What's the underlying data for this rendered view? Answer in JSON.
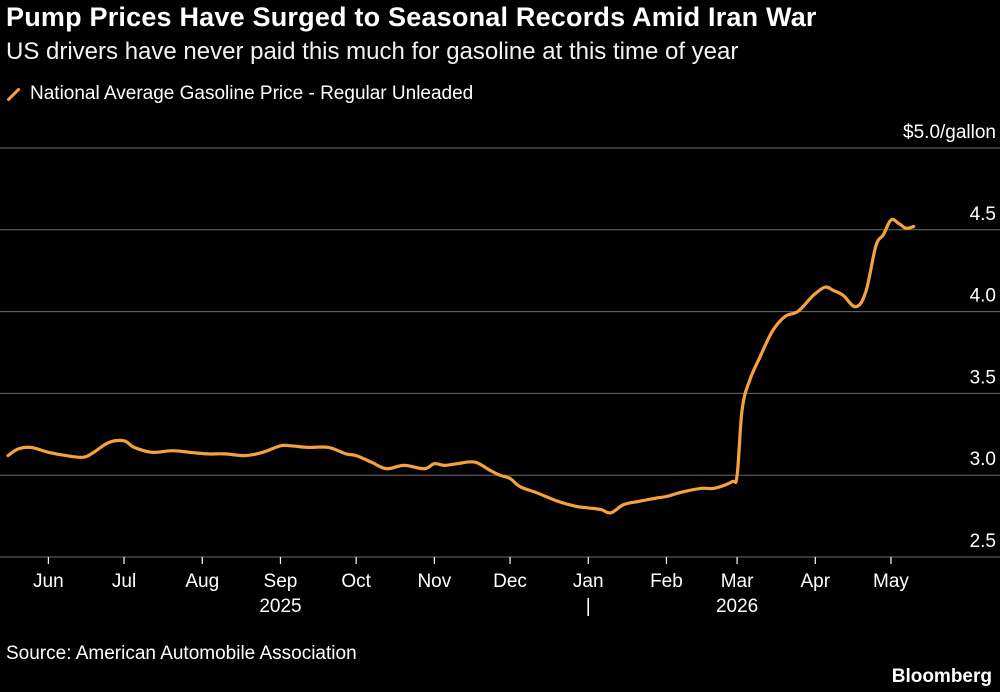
{
  "header": {
    "title": "Pump Prices Have Surged to Seasonal Records Amid Iran War",
    "subtitle": "US drivers have never paid this much for gasoline at this time of year"
  },
  "footer": {
    "source": "Source: American Automobile Association",
    "brand": "Bloomberg"
  },
  "chart_data": {
    "type": "line",
    "title": "Pump Prices Have Surged to Seasonal Records Amid Iran War",
    "subtitle": "US drivers have never paid this much for gasoline at this time of year",
    "ylabel": "$5.0/gallon",
    "xlabel": "",
    "ylim": [
      2.5,
      5.0
    ],
    "y_ticks": [
      {
        "value": 5.0,
        "label": "$5.0/gallon"
      },
      {
        "value": 4.5,
        "label": "4.5"
      },
      {
        "value": 4.0,
        "label": "4.0"
      },
      {
        "value": 3.5,
        "label": "3.5"
      },
      {
        "value": 3.0,
        "label": "3.0"
      },
      {
        "value": 2.5,
        "label": "2.5"
      }
    ],
    "x_ticks": [
      {
        "date": "2025-06-01",
        "label": "Jun"
      },
      {
        "date": "2025-07-01",
        "label": "Jul"
      },
      {
        "date": "2025-08-01",
        "label": "Aug"
      },
      {
        "date": "2025-09-01",
        "label": "Sep"
      },
      {
        "date": "2025-10-01",
        "label": "Oct"
      },
      {
        "date": "2025-11-01",
        "label": "Nov"
      },
      {
        "date": "2025-12-01",
        "label": "Dec"
      },
      {
        "date": "2026-01-01",
        "label": "Jan"
      },
      {
        "date": "2026-02-01",
        "label": "Feb"
      },
      {
        "date": "2026-03-01",
        "label": "Mar"
      },
      {
        "date": "2026-04-01",
        "label": "Apr"
      },
      {
        "date": "2026-05-01",
        "label": "May"
      }
    ],
    "year_labels": [
      {
        "date": "2025-09-01",
        "label": "2025"
      },
      {
        "date": "2026-03-01",
        "label": "2026"
      }
    ],
    "year_divider": {
      "date": "2026-01-01",
      "label": "|"
    },
    "x_range": [
      "2025-05-16",
      "2026-05-24"
    ],
    "grid": true,
    "legend_position": "top-left",
    "series": [
      {
        "name": "National Average Gasoline Price - Regular Unleaded",
        "color": "#f5a23c",
        "x": [
          "2025-05-16",
          "2025-05-20",
          "2025-05-25",
          "2025-06-01",
          "2025-06-08",
          "2025-06-15",
          "2025-06-19",
          "2025-06-25",
          "2025-07-01",
          "2025-07-05",
          "2025-07-12",
          "2025-07-20",
          "2025-07-27",
          "2025-08-03",
          "2025-08-10",
          "2025-08-18",
          "2025-08-25",
          "2025-09-01",
          "2025-09-05",
          "2025-09-12",
          "2025-09-20",
          "2025-09-27",
          "2025-10-01",
          "2025-10-07",
          "2025-10-13",
          "2025-10-20",
          "2025-10-28",
          "2025-11-01",
          "2025-11-05",
          "2025-11-10",
          "2025-11-17",
          "2025-11-23",
          "2025-11-27",
          "2025-12-01",
          "2025-12-05",
          "2025-12-12",
          "2025-12-20",
          "2025-12-27",
          "2026-01-01",
          "2026-01-06",
          "2026-01-10",
          "2026-01-15",
          "2026-01-21",
          "2026-01-28",
          "2026-02-01",
          "2026-02-08",
          "2026-02-15",
          "2026-02-20",
          "2026-02-27",
          "2026-03-01",
          "2026-03-03",
          "2026-03-06",
          "2026-03-10",
          "2026-03-15",
          "2026-03-20",
          "2026-03-25",
          "2026-03-30",
          "2026-04-01",
          "2026-04-05",
          "2026-04-08",
          "2026-04-12",
          "2026-04-17",
          "2026-04-21",
          "2026-04-25",
          "2026-04-28",
          "2026-05-01",
          "2026-05-04",
          "2026-05-07",
          "2026-05-10"
        ],
        "values": [
          3.12,
          3.16,
          3.17,
          3.14,
          3.12,
          3.11,
          3.14,
          3.2,
          3.21,
          3.17,
          3.14,
          3.15,
          3.14,
          3.13,
          3.13,
          3.12,
          3.14,
          3.18,
          3.18,
          3.17,
          3.17,
          3.13,
          3.12,
          3.08,
          3.04,
          3.06,
          3.04,
          3.07,
          3.06,
          3.07,
          3.08,
          3.03,
          3.0,
          2.98,
          2.93,
          2.89,
          2.84,
          2.81,
          2.8,
          2.79,
          2.77,
          2.82,
          2.84,
          2.86,
          2.87,
          2.9,
          2.92,
          2.92,
          2.96,
          3.0,
          3.4,
          3.58,
          3.72,
          3.88,
          3.97,
          4.0,
          4.08,
          4.11,
          4.15,
          4.13,
          4.1,
          4.03,
          4.12,
          4.4,
          4.47,
          4.56,
          4.54,
          4.51,
          4.52
        ]
      }
    ]
  }
}
